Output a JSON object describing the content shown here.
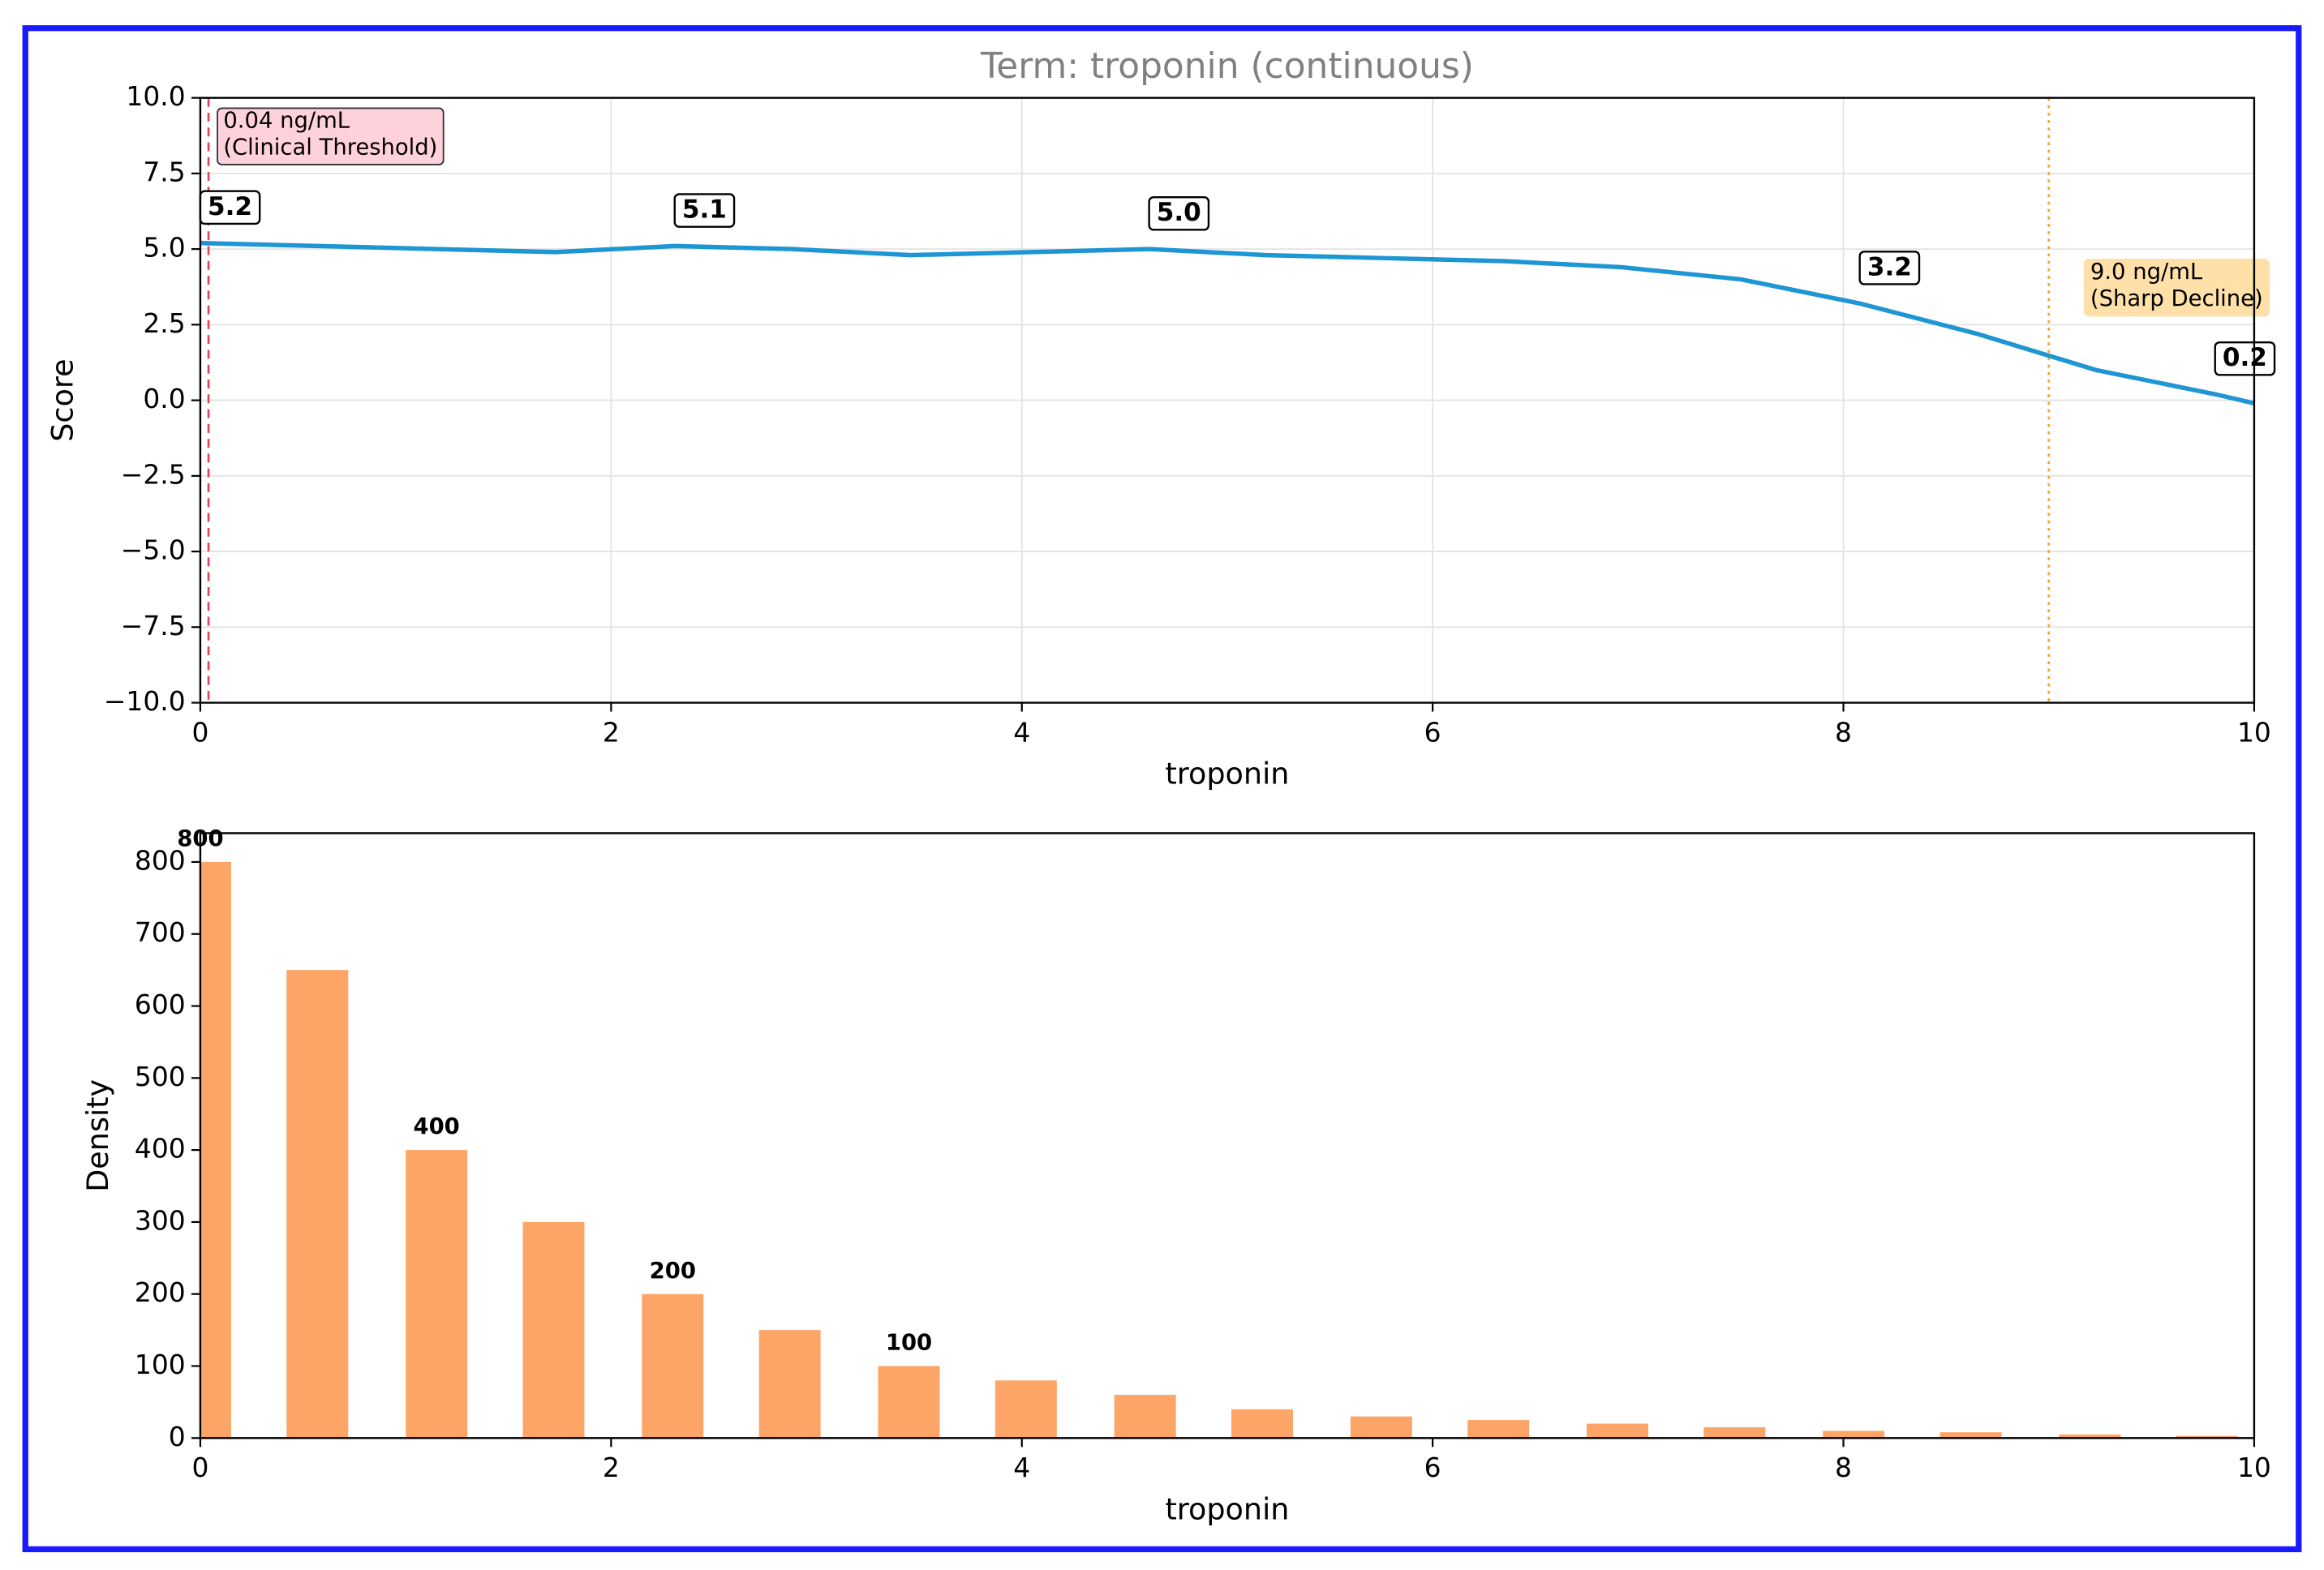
{
  "chart_data": [
    {
      "type": "line",
      "title": "Term: troponin (continuous)",
      "xlabel": "troponin",
      "ylabel": "Score",
      "xlim": [
        0,
        10
      ],
      "ylim": [
        -10,
        10
      ],
      "xticks": [
        0,
        2,
        4,
        6,
        8,
        10
      ],
      "yticks": [
        {
          "value": -10,
          "label": "−10.0"
        },
        {
          "value": -7.5,
          "label": "−7.5"
        },
        {
          "value": -5,
          "label": "−5.0"
        },
        {
          "value": -2.5,
          "label": "−2.5"
        },
        {
          "value": 0,
          "label": "0.0"
        },
        {
          "value": 2.5,
          "label": "2.5"
        },
        {
          "value": 5,
          "label": "5.0"
        },
        {
          "value": 7.5,
          "label": "7.5"
        },
        {
          "value": 10,
          "label": "10.0"
        }
      ],
      "grid": true,
      "x": [
        0,
        0.58,
        1.15,
        1.73,
        2.31,
        2.88,
        3.46,
        4.04,
        4.62,
        5.19,
        5.77,
        6.35,
        6.92,
        7.5,
        8.08,
        8.65,
        9.23,
        9.81,
        10
      ],
      "series": [
        {
          "color": "#1f96d4",
          "values": [
            5.2,
            5.1,
            5.0,
            4.9,
            5.1,
            5.0,
            4.8,
            4.9,
            5.0,
            4.8,
            4.7,
            4.6,
            4.4,
            4.0,
            3.2,
            2.2,
            1.0,
            0.2,
            -0.1
          ],
          "value_labels": [
            "5.2",
            null,
            null,
            null,
            "5.1",
            null,
            null,
            null,
            "5.0",
            null,
            null,
            null,
            null,
            null,
            "3.2",
            null,
            null,
            "0.2",
            null
          ]
        }
      ],
      "vlines": [
        {
          "x": 0.04,
          "color": "#e8455a",
          "style": "dashed",
          "box_color": "#ffd1dc",
          "label": [
            "0.04 ng/mL",
            "(Clinical Threshold)"
          ]
        },
        {
          "x": 9.0,
          "color": "#f5a623",
          "style": "dotted",
          "box_color": "#ffe0a8",
          "label": [
            "9.0 ng/mL",
            "(Sharp Decline)"
          ]
        }
      ]
    },
    {
      "type": "bar",
      "xlabel": "troponin",
      "ylabel": "Density",
      "xlim": [
        0,
        10
      ],
      "ylim": [
        0,
        840
      ],
      "xticks": [
        0,
        2,
        4,
        6,
        8,
        10
      ],
      "yticks": [
        0,
        100,
        200,
        300,
        400,
        500,
        600,
        700,
        800
      ],
      "grid": false,
      "color": "#fca566",
      "x": [
        0,
        0.57,
        1.15,
        1.72,
        2.3,
        2.87,
        3.45,
        4.02,
        4.6,
        5.17,
        5.75,
        6.32,
        6.9,
        7.47,
        8.05,
        8.62,
        9.2,
        9.77
      ],
      "values": [
        800,
        650,
        400,
        300,
        200,
        150,
        100,
        80,
        60,
        40,
        30,
        25,
        20,
        15,
        10,
        8,
        5,
        3
      ],
      "value_labels": [
        "800",
        null,
        "400",
        null,
        "200",
        null,
        "100",
        null,
        null,
        null,
        null,
        null,
        null,
        null,
        null,
        null,
        null,
        null
      ]
    }
  ]
}
